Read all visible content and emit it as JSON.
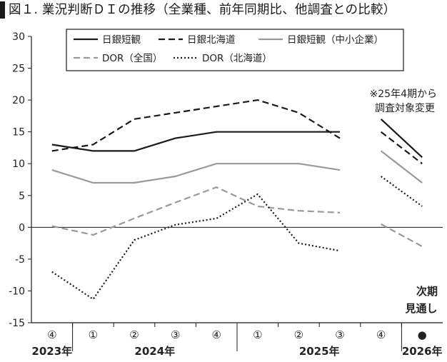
{
  "title": "図１. 業況判断ＤＩの推移（全業種、前年同期比、他調査との比較）",
  "chart_data": {
    "type": "line",
    "ylim": [
      -15,
      30
    ],
    "yticks": [
      30,
      25,
      20,
      15,
      10,
      5,
      0,
      -5,
      -10,
      -15
    ],
    "categories": [
      "④",
      "①",
      "②",
      "③",
      "④",
      "①",
      "②",
      "③",
      "④",
      "●"
    ],
    "year_labels": [
      "2023年",
      "2024年",
      "2025年",
      "2026年"
    ],
    "grid": false,
    "legend_position": "top",
    "series": [
      {
        "name": "日銀短観",
        "color": "#1a1a1a",
        "style": "solid",
        "segments": [
          {
            "x": [
              0,
              1,
              2,
              3,
              4,
              5,
              6,
              7
            ],
            "y": [
              13,
              12,
              12,
              14,
              15,
              15,
              15,
              15
            ]
          },
          {
            "x": [
              8,
              9
            ],
            "y": [
              17,
              11
            ]
          }
        ]
      },
      {
        "name": "日銀北海道",
        "color": "#1a1a1a",
        "style": "dashed",
        "segments": [
          {
            "x": [
              0,
              1,
              2,
              3,
              4,
              5,
              6,
              7
            ],
            "y": [
              12,
              13,
              17,
              18,
              19,
              20,
              18,
              14
            ]
          },
          {
            "x": [
              8,
              9
            ],
            "y": [
              15,
              10
            ]
          }
        ]
      },
      {
        "name": "日銀短観（中小企業）",
        "color": "#999999",
        "style": "solid",
        "segments": [
          {
            "x": [
              0,
              1,
              2,
              3,
              4,
              5,
              6,
              7
            ],
            "y": [
              9,
              7,
              7,
              8,
              10,
              10,
              10,
              9
            ]
          },
          {
            "x": [
              8,
              9
            ],
            "y": [
              12,
              7
            ]
          }
        ]
      },
      {
        "name": "DOR（全国）",
        "color": "#999999",
        "style": "dashed",
        "segments": [
          {
            "x": [
              0,
              1,
              2,
              3,
              4,
              5,
              6,
              7
            ],
            "y": [
              0.2,
              -1.2,
              1.4,
              3.9,
              6.3,
              3.3,
              2.6,
              2.3
            ]
          },
          {
            "x": [
              8,
              9
            ],
            "y": [
              0.5,
              -3.0
            ]
          }
        ]
      },
      {
        "name": "DOR（北海道）",
        "color": "#1a1a1a",
        "style": "dotted",
        "segments": [
          {
            "x": [
              0,
              1,
              2,
              3,
              4,
              5,
              6,
              7
            ],
            "y": [
              -7.0,
              -11.3,
              -2.0,
              0.4,
              1.4,
              5.2,
              -2.5,
              -3.7
            ]
          },
          {
            "x": [
              8,
              9
            ],
            "y": [
              8.0,
              3.3
            ]
          }
        ]
      }
    ],
    "annotations": {
      "survey_change": [
        "※25年4期から",
        "調査対象変更"
      ],
      "forecast": [
        "次期",
        "見通し"
      ]
    }
  }
}
